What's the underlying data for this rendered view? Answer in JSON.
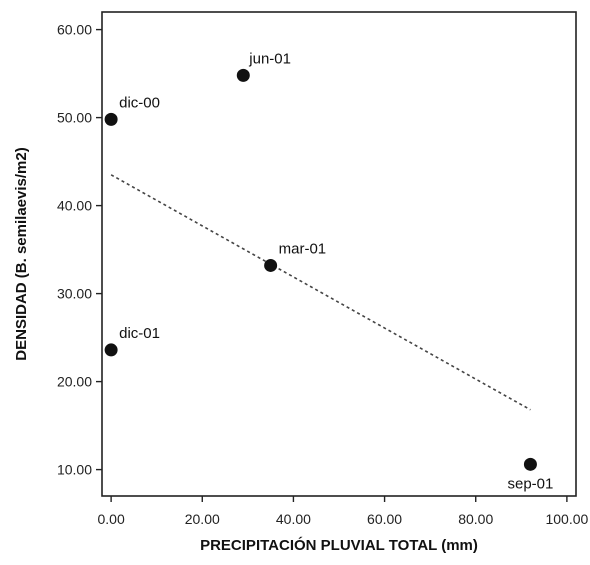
{
  "chart_data": {
    "type": "scatter",
    "title": "",
    "xlabel": "PRECIPITACIÓN PLUVIAL TOTAL (mm)",
    "ylabel": "DENSIDAD (B. semilaevis/m2)",
    "xlim": [
      -2,
      102
    ],
    "ylim": [
      7,
      62
    ],
    "xticks": [
      0,
      20,
      40,
      60,
      80,
      100
    ],
    "xtick_labels": [
      "0.00",
      "20.00",
      "40.00",
      "60.00",
      "80.00",
      "100.00"
    ],
    "yticks": [
      10,
      20,
      30,
      40,
      50,
      60
    ],
    "ytick_labels": [
      "10.00",
      "20.00",
      "30.00",
      "40.00",
      "50.00",
      "60.00"
    ],
    "grid": false,
    "points": [
      {
        "label": "dic-00",
        "x": 0,
        "y": 49.8
      },
      {
        "label": "jun-01",
        "x": 29,
        "y": 54.8
      },
      {
        "label": "mar-01",
        "x": 35,
        "y": 33.2
      },
      {
        "label": "dic-01",
        "x": 0,
        "y": 23.6
      },
      {
        "label": "sep-01",
        "x": 92,
        "y": 10.6
      }
    ],
    "trendline": {
      "style": "dotted",
      "x": [
        0,
        92
      ],
      "y": [
        43.5,
        16.8
      ]
    }
  }
}
